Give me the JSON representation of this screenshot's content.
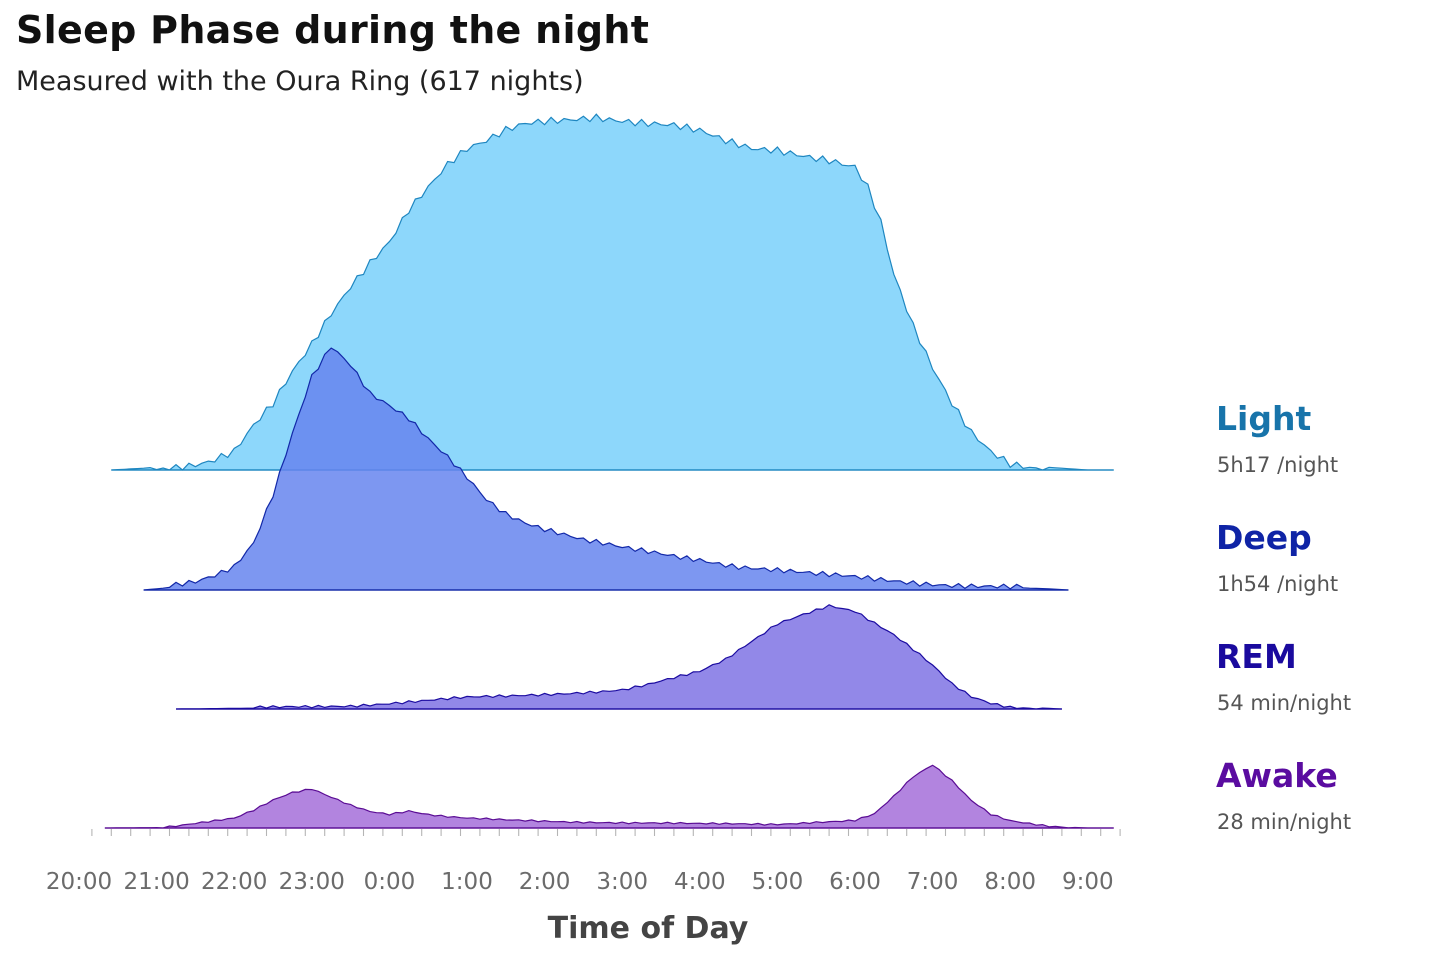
{
  "chart_data": {
    "type": "area",
    "title": "Sleep Phase during the night",
    "subtitle": "Measured with the Oura Ring (617 nights)",
    "xlabel": "Time of Day",
    "x_ticks": [
      "20:00",
      "21:00",
      "22:00",
      "23:00",
      "0:00",
      "1:00",
      "2:00",
      "3:00",
      "4:00",
      "5:00",
      "6:00",
      "7:00",
      "8:00",
      "9:00"
    ],
    "xlim": [
      "20:00",
      "9:30"
    ],
    "style": "ridgeline",
    "grid": false,
    "legend": "right",
    "series": [
      {
        "name": "Light",
        "duration": "5h17 /night",
        "fill": "#8dd7fb",
        "stroke": "#1e86c0",
        "label_color": "#1874aa",
        "x": [
          "20:25",
          "20:50",
          "21:20",
          "21:40",
          "22:00",
          "22:15",
          "22:30",
          "22:45",
          "23:00",
          "23:15",
          "23:30",
          "23:45",
          "0:00",
          "0:15",
          "0:30",
          "0:45",
          "1:00",
          "1:15",
          "1:30",
          "1:45",
          "2:00",
          "2:20",
          "2:40",
          "3:00",
          "3:20",
          "3:40",
          "4:00",
          "4:20",
          "4:40",
          "5:00",
          "5:20",
          "5:40",
          "6:00",
          "6:10",
          "6:20",
          "6:30",
          "6:45",
          "7:00",
          "7:15",
          "7:30",
          "7:45",
          "8:00",
          "8:20",
          "8:40",
          "9:00",
          "9:20"
        ],
        "y": [
          0,
          0.5,
          1.5,
          2.5,
          5,
          12,
          18,
          27,
          35,
          44,
          52,
          59,
          65,
          74,
          80,
          86,
          90,
          92,
          95,
          97,
          98,
          99,
          100,
          99,
          98,
          97,
          95,
          92,
          90,
          90,
          89,
          88,
          86,
          80,
          70,
          55,
          40,
          28,
          18,
          10,
          5,
          2,
          1,
          0.5,
          0,
          0
        ]
      },
      {
        "name": "Deep",
        "duration": "1h54 /night",
        "fill": "#6685ee",
        "stroke": "#1228a8",
        "label_color": "#0f24a6",
        "x": [
          "20:50",
          "21:10",
          "21:30",
          "21:45",
          "22:00",
          "22:15",
          "22:30",
          "22:45",
          "23:00",
          "23:15",
          "23:30",
          "23:45",
          "0:00",
          "0:15",
          "0:30",
          "0:45",
          "1:00",
          "1:15",
          "1:30",
          "1:45",
          "2:00",
          "2:30",
          "3:00",
          "3:30",
          "4:00",
          "4:30",
          "5:00",
          "5:30",
          "6:00",
          "6:30",
          "7:00",
          "7:30",
          "8:00",
          "8:30",
          "8:45"
        ],
        "y": [
          0,
          1,
          3,
          6,
          10,
          20,
          40,
          65,
          88,
          100,
          92,
          80,
          75,
          70,
          62,
          55,
          47,
          38,
          32,
          28,
          25,
          20,
          17,
          15,
          13,
          10,
          8,
          6,
          5,
          4,
          3,
          2,
          1,
          0.5,
          0
        ]
      },
      {
        "name": "REM",
        "duration": "54 min/night",
        "fill": "#7f73e4",
        "stroke": "#1b0ba0",
        "label_color": "#1a0a9e",
        "x": [
          "21:15",
          "22:00",
          "22:30",
          "23:00",
          "23:30",
          "0:00",
          "0:30",
          "1:00",
          "1:30",
          "2:00",
          "2:30",
          "3:00",
          "3:20",
          "3:40",
          "4:00",
          "4:20",
          "4:40",
          "5:00",
          "5:20",
          "5:40",
          "6:00",
          "6:15",
          "6:30",
          "6:45",
          "7:00",
          "7:15",
          "7:30",
          "7:45",
          "8:00",
          "8:30",
          "8:40"
        ],
        "y": [
          0,
          0.5,
          1,
          2,
          3,
          5,
          7,
          9,
          10,
          12,
          14,
          16,
          20,
          25,
          30,
          40,
          55,
          70,
          78,
          85,
          80,
          70,
          60,
          48,
          35,
          20,
          10,
          5,
          2,
          0.5,
          0
        ]
      },
      {
        "name": "Awake",
        "duration": "28 min/night",
        "fill": "#a56ed9",
        "stroke": "#5a0c94",
        "label_color": "#5a0ca0",
        "x": [
          "20:20",
          "21:00",
          "21:15",
          "21:30",
          "22:00",
          "22:15",
          "22:30",
          "22:45",
          "23:00",
          "23:15",
          "23:30",
          "23:45",
          "0:00",
          "0:15",
          "0:30",
          "0:45",
          "1:00",
          "1:30",
          "2:00",
          "2:30",
          "3:00",
          "3:30",
          "4:00",
          "4:30",
          "5:00",
          "5:30",
          "6:00",
          "6:15",
          "6:30",
          "6:45",
          "7:00",
          "7:15",
          "7:30",
          "7:45",
          "8:00",
          "8:30",
          "8:45",
          "9:00",
          "9:20"
        ],
        "y": [
          0,
          0.5,
          3,
          6,
          12,
          22,
          35,
          45,
          50,
          40,
          30,
          22,
          18,
          22,
          17,
          14,
          12,
          10,
          9,
          8,
          7,
          6,
          5,
          5,
          5,
          8,
          10,
          18,
          40,
          65,
          80,
          60,
          35,
          18,
          10,
          3,
          1,
          0,
          0
        ]
      }
    ]
  }
}
